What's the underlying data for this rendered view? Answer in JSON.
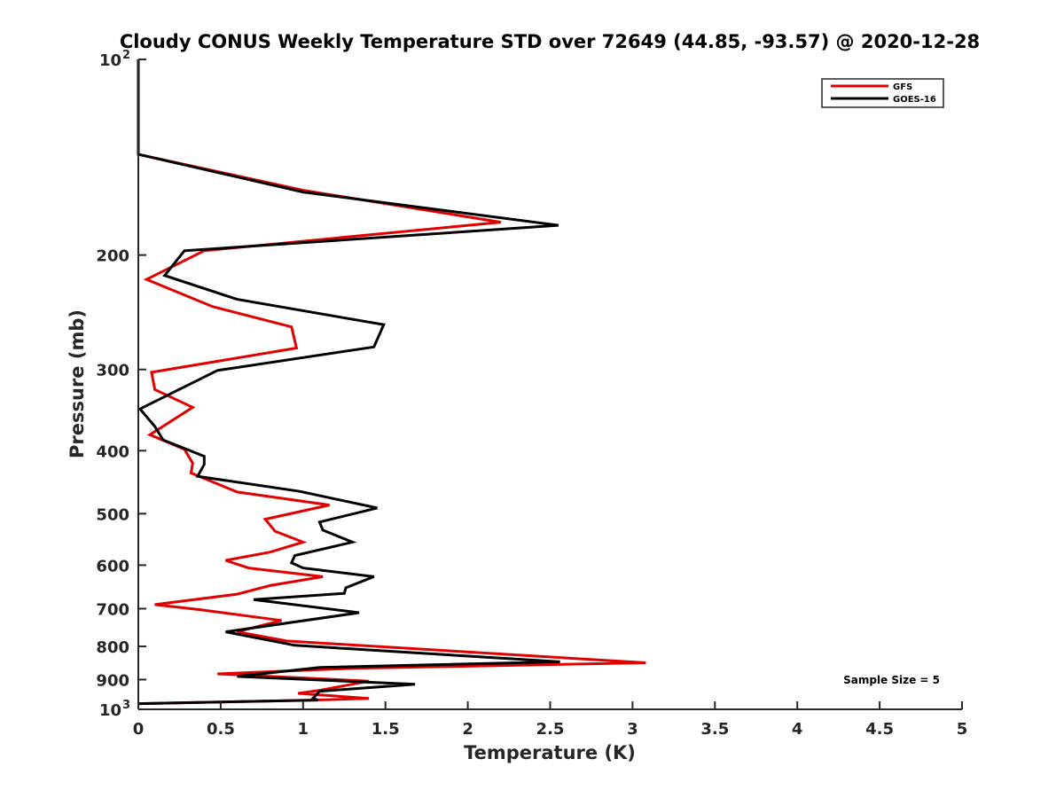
{
  "chart_data": {
    "type": "line",
    "title": "Cloudy CONUS Weekly Temperature STD over 72649 (44.85, -93.57) @ 2020-12-28",
    "xlabel": "Temperature (K)",
    "ylabel": "Pressure (mb)",
    "xlim": [
      0,
      5
    ],
    "ylim": [
      100,
      1000
    ],
    "yscale": "log",
    "y_reversed": true,
    "grid": false,
    "legend_position": "top-right",
    "x_ticks": [
      {
        "value": 0,
        "label": "0"
      },
      {
        "value": 0.5,
        "label": "0.5"
      },
      {
        "value": 1,
        "label": "1"
      },
      {
        "value": 1.5,
        "label": "1.5"
      },
      {
        "value": 2,
        "label": "2"
      },
      {
        "value": 2.5,
        "label": "2.5"
      },
      {
        "value": 3,
        "label": "3"
      },
      {
        "value": 3.5,
        "label": "3.5"
      },
      {
        "value": 4,
        "label": "4"
      },
      {
        "value": 4.5,
        "label": "4.5"
      },
      {
        "value": 5,
        "label": "5"
      }
    ],
    "y_ticks": [
      {
        "value": 100,
        "label": "10",
        "sup": "2"
      },
      {
        "value": 200,
        "label": "200"
      },
      {
        "value": 300,
        "label": "300"
      },
      {
        "value": 400,
        "label": "400"
      },
      {
        "value": 500,
        "label": "500"
      },
      {
        "value": 600,
        "label": "600"
      },
      {
        "value": 700,
        "label": "700"
      },
      {
        "value": 800,
        "label": "800"
      },
      {
        "value": 900,
        "label": "900"
      },
      {
        "value": 1000,
        "label": "10",
        "sup": "3"
      }
    ],
    "annotation": "Sample Size = 5",
    "series": [
      {
        "name": "GFS",
        "color": "#e00000",
        "points": [
          [
            0,
            100
          ],
          [
            0,
            140
          ],
          [
            1.0,
            159
          ],
          [
            2.2,
            178
          ],
          [
            0.4,
            197
          ],
          [
            0.05,
            218
          ],
          [
            0.45,
            240
          ],
          [
            0.93,
            258
          ],
          [
            0.96,
            278
          ],
          [
            0.08,
            303
          ],
          [
            0.1,
            322
          ],
          [
            0.33,
            343
          ],
          [
            0.07,
            378
          ],
          [
            0.28,
            398
          ],
          [
            0.33,
            418
          ],
          [
            0.32,
            433
          ],
          [
            0.6,
            463
          ],
          [
            1.16,
            485
          ],
          [
            0.77,
            510
          ],
          [
            0.83,
            532
          ],
          [
            1.0,
            553
          ],
          [
            0.8,
            573
          ],
          [
            0.53,
            590
          ],
          [
            0.67,
            606
          ],
          [
            1.12,
            625
          ],
          [
            0.8,
            645
          ],
          [
            0.6,
            665
          ],
          [
            0.1,
            690
          ],
          [
            0.38,
            703
          ],
          [
            0.87,
            730
          ],
          [
            0.73,
            745
          ],
          [
            0.6,
            760
          ],
          [
            0.9,
            785
          ],
          [
            3.08,
            848
          ],
          [
            1.3,
            865
          ],
          [
            0.48,
            882
          ],
          [
            1.4,
            905
          ],
          [
            1.1,
            935
          ],
          [
            0.97,
            945
          ],
          [
            1.4,
            962
          ],
          [
            1.05,
            968
          ],
          [
            0,
            980
          ]
        ]
      },
      {
        "name": "GOES-16",
        "color": "#000000",
        "points": [
          [
            0,
            100
          ],
          [
            0,
            140
          ],
          [
            1.0,
            160
          ],
          [
            2.55,
            180
          ],
          [
            0.28,
            197
          ],
          [
            0.16,
            215
          ],
          [
            0.6,
            234
          ],
          [
            1.49,
            256
          ],
          [
            1.43,
            277
          ],
          [
            0.48,
            301
          ],
          [
            0.01,
            345
          ],
          [
            0.1,
            367
          ],
          [
            0.15,
            385
          ],
          [
            0.4,
            408
          ],
          [
            0.4,
            420
          ],
          [
            0.36,
            438
          ],
          [
            0.98,
            462
          ],
          [
            1.45,
            490
          ],
          [
            1.1,
            515
          ],
          [
            1.12,
            530
          ],
          [
            1.3,
            553
          ],
          [
            0.95,
            580
          ],
          [
            0.93,
            595
          ],
          [
            1.0,
            606
          ],
          [
            1.43,
            625
          ],
          [
            1.26,
            650
          ],
          [
            1.25,
            663
          ],
          [
            0.7,
            678
          ],
          [
            1.34,
            710
          ],
          [
            0.53,
            760
          ],
          [
            0.95,
            797
          ],
          [
            2.56,
            845
          ],
          [
            1.1,
            862
          ],
          [
            0.6,
            890
          ],
          [
            1.68,
            915
          ],
          [
            1.1,
            938
          ],
          [
            1.06,
            962
          ],
          [
            1.09,
            968
          ],
          [
            0,
            980
          ]
        ]
      }
    ]
  }
}
